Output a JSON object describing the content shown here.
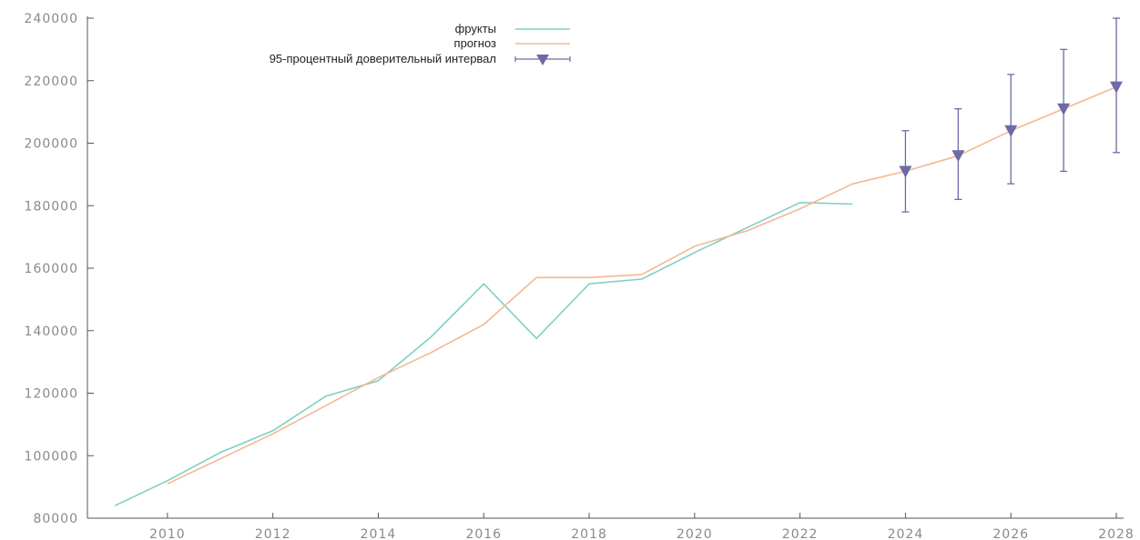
{
  "chart_data": {
    "type": "line",
    "xlim": [
      2009,
      2028
    ],
    "ylim": [
      80000,
      240000
    ],
    "x_ticks": [
      2010,
      2012,
      2014,
      2016,
      2018,
      2020,
      2022,
      2024,
      2026,
      2028
    ],
    "y_ticks": [
      80000,
      100000,
      120000,
      140000,
      160000,
      180000,
      200000,
      220000,
      240000
    ],
    "grid": false,
    "legend_position": "top-center",
    "series": [
      {
        "name": "фрукты",
        "color": "#7fd0c3",
        "style": "line",
        "x": [
          2009,
          2010,
          2011,
          2012,
          2013,
          2014,
          2015,
          2016,
          2017,
          2018,
          2019,
          2020,
          2021,
          2022,
          2023
        ],
        "y": [
          84000,
          92000,
          101000,
          108000,
          119000,
          124000,
          138000,
          155000,
          137500,
          155000,
          156500,
          165000,
          173000,
          181000,
          180500
        ]
      },
      {
        "name": "прогноз",
        "color": "#f3b892",
        "style": "line",
        "x": [
          2010,
          2011,
          2012,
          2013,
          2014,
          2015,
          2016,
          2017,
          2018,
          2019,
          2020,
          2021,
          2022,
          2023,
          2024,
          2025,
          2026,
          2027,
          2028
        ],
        "y": [
          91000,
          99000,
          107000,
          116000,
          125000,
          133000,
          142000,
          157000,
          157000,
          158000,
          167000,
          172000,
          179000,
          187000,
          191000,
          196000,
          204000,
          211000,
          218000
        ]
      },
      {
        "name": "95-процентный доверительный интервал",
        "color": "#6e6aa8",
        "style": "errorbar",
        "x": [
          2024,
          2025,
          2026,
          2027,
          2028
        ],
        "y": [
          191000,
          196000,
          204000,
          211000,
          218000
        ],
        "lower": [
          178000,
          182000,
          187000,
          191000,
          197000
        ],
        "upper": [
          204000,
          211000,
          222000,
          230000,
          240000
        ]
      }
    ]
  }
}
